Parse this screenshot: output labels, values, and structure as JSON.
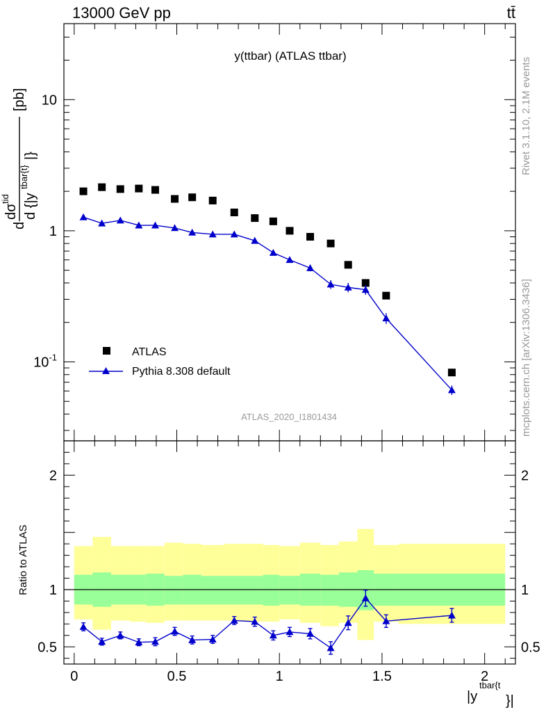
{
  "header": {
    "left": "13000 GeV pp",
    "right": "tt̄"
  },
  "side_text": {
    "top": "Rivet 3.1.10,  2.1M events",
    "bottom": "mcplots.cern.ch [arXiv:1306.3436]"
  },
  "colors": {
    "data": "#000000",
    "mc": "#0000cc",
    "band_inner": "#99ff99",
    "band_outer": "#ffff99"
  },
  "chart_data": [
    {
      "type": "scatter",
      "title": "y(ttbar) (ATLAS ttbar)",
      "watermark": "ATLAS_2020_I1801434",
      "ylabel": "dσ^{tid}/d {|y^{tbar{t}}|} [pb]",
      "yscale": "log",
      "ylim": [
        0.025,
        38
      ],
      "xlim": [
        -0.05,
        2.15
      ],
      "yticks": [
        {
          "v": 0.1,
          "label": "10^-1"
        },
        {
          "v": 1,
          "label": "1"
        },
        {
          "v": 10,
          "label": "10"
        }
      ],
      "legend": [
        "ATLAS",
        "Pythia 8.308 default"
      ],
      "series": [
        {
          "name": "ATLAS",
          "marker": "square",
          "x": [
            0.045,
            0.135,
            0.225,
            0.315,
            0.395,
            0.49,
            0.575,
            0.675,
            0.78,
            0.88,
            0.97,
            1.05,
            1.15,
            1.25,
            1.335,
            1.42,
            1.52,
            1.84
          ],
          "y": [
            2.0,
            2.15,
            2.08,
            2.1,
            2.05,
            1.75,
            1.8,
            1.7,
            1.38,
            1.25,
            1.18,
            1.0,
            0.9,
            0.8,
            0.55,
            0.4,
            0.32,
            0.083
          ]
        },
        {
          "name": "Pythia 8.308 default",
          "marker": "triangle",
          "x": [
            0.045,
            0.135,
            0.225,
            0.315,
            0.395,
            0.49,
            0.575,
            0.675,
            0.78,
            0.88,
            0.97,
            1.05,
            1.15,
            1.25,
            1.335,
            1.42,
            1.52,
            1.84
          ],
          "y": [
            1.27,
            1.14,
            1.2,
            1.1,
            1.1,
            1.05,
            0.97,
            0.94,
            0.94,
            0.84,
            0.68,
            0.6,
            0.52,
            0.39,
            0.37,
            0.355,
            0.215,
            0.061
          ],
          "yerr": [
            0.04,
            0.04,
            0.04,
            0.04,
            0.04,
            0.04,
            0.03,
            0.03,
            0.03,
            0.03,
            0.03,
            0.03,
            0.03,
            0.03,
            0.03,
            0.03,
            0.02,
            0.005
          ]
        }
      ]
    },
    {
      "type": "scatter",
      "ylabel": "Ratio to ATLAS",
      "xlabel": "|y^{tbar{t}}|",
      "ylim": [
        0.35,
        2.3
      ],
      "xlim": [
        -0.05,
        2.15
      ],
      "xticks": [
        0,
        0.5,
        1,
        1.5,
        2
      ],
      "yticks": [
        0.5,
        1,
        2
      ],
      "bins": [
        {
          "lo": 0.0,
          "hi": 0.09,
          "inner": [
            0.87,
            1.13
          ],
          "outer": [
            0.74,
            1.38
          ]
        },
        {
          "lo": 0.09,
          "hi": 0.18,
          "inner": [
            0.85,
            1.15
          ],
          "outer": [
            0.65,
            1.46
          ]
        },
        {
          "lo": 0.18,
          "hi": 0.27,
          "inner": [
            0.87,
            1.13
          ],
          "outer": [
            0.73,
            1.38
          ]
        },
        {
          "lo": 0.27,
          "hi": 0.35,
          "inner": [
            0.87,
            1.13
          ],
          "outer": [
            0.72,
            1.38
          ]
        },
        {
          "lo": 0.35,
          "hi": 0.44,
          "inner": [
            0.86,
            1.14
          ],
          "outer": [
            0.71,
            1.38
          ]
        },
        {
          "lo": 0.44,
          "hi": 0.53,
          "inner": [
            0.87,
            1.12
          ],
          "outer": [
            0.73,
            1.41
          ]
        },
        {
          "lo": 0.53,
          "hi": 0.62,
          "inner": [
            0.87,
            1.13
          ],
          "outer": [
            0.73,
            1.4
          ]
        },
        {
          "lo": 0.62,
          "hi": 0.73,
          "inner": [
            0.87,
            1.12
          ],
          "outer": [
            0.73,
            1.39
          ]
        },
        {
          "lo": 0.73,
          "hi": 0.83,
          "inner": [
            0.87,
            1.12
          ],
          "outer": [
            0.73,
            1.4
          ]
        },
        {
          "lo": 0.83,
          "hi": 0.92,
          "inner": [
            0.87,
            1.12
          ],
          "outer": [
            0.72,
            1.4
          ]
        },
        {
          "lo": 0.92,
          "hi": 1.0,
          "inner": [
            0.86,
            1.13
          ],
          "outer": [
            0.72,
            1.39
          ]
        },
        {
          "lo": 1.0,
          "hi": 1.1,
          "inner": [
            0.87,
            1.12
          ],
          "outer": [
            0.74,
            1.38
          ]
        },
        {
          "lo": 1.1,
          "hi": 1.2,
          "inner": [
            0.86,
            1.14
          ],
          "outer": [
            0.71,
            1.41
          ]
        },
        {
          "lo": 1.2,
          "hi": 1.29,
          "inner": [
            0.86,
            1.13
          ],
          "outer": [
            0.68,
            1.39
          ]
        },
        {
          "lo": 1.29,
          "hi": 1.38,
          "inner": [
            0.85,
            1.15
          ],
          "outer": [
            0.71,
            1.42
          ]
        },
        {
          "lo": 1.38,
          "hi": 1.46,
          "inner": [
            0.82,
            1.17
          ],
          "outer": [
            0.56,
            1.53
          ]
        },
        {
          "lo": 1.46,
          "hi": 1.58,
          "inner": [
            0.86,
            1.14
          ],
          "outer": [
            0.72,
            1.39
          ]
        },
        {
          "lo": 1.58,
          "hi": 2.1,
          "inner": [
            0.86,
            1.14
          ],
          "outer": [
            0.7,
            1.4
          ]
        }
      ],
      "series": [
        {
          "name": "Pythia 8.308 default",
          "marker": "triangle",
          "x": [
            0.045,
            0.135,
            0.225,
            0.315,
            0.395,
            0.49,
            0.575,
            0.675,
            0.78,
            0.88,
            0.97,
            1.05,
            1.15,
            1.25,
            1.335,
            1.42,
            1.52,
            1.84
          ],
          "y": [
            0.675,
            0.545,
            0.6,
            0.54,
            0.545,
            0.635,
            0.56,
            0.565,
            0.73,
            0.72,
            0.6,
            0.63,
            0.615,
            0.49,
            0.71,
            0.925,
            0.725,
            0.775
          ],
          "yerr": [
            0.035,
            0.03,
            0.03,
            0.03,
            0.035,
            0.035,
            0.035,
            0.035,
            0.035,
            0.04,
            0.04,
            0.04,
            0.045,
            0.055,
            0.06,
            0.07,
            0.055,
            0.06
          ]
        }
      ]
    }
  ]
}
